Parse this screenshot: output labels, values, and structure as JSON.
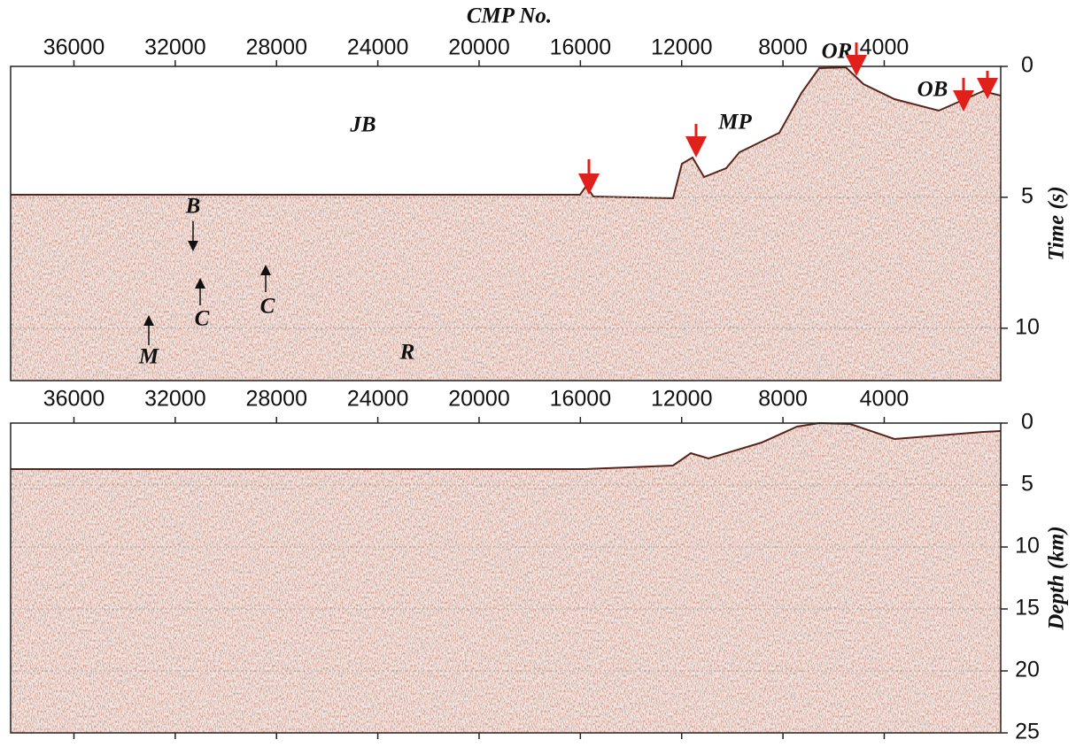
{
  "chart_data": [
    {
      "type": "seismic",
      "title": "CMP No.",
      "y_label": "Time (s)",
      "xlim": [
        38500,
        -600
      ],
      "xticks": [
        36000,
        32000,
        28000,
        24000,
        20000,
        16000,
        12000,
        8000,
        4000
      ],
      "ylim": [
        0,
        12
      ],
      "yticks": [
        0,
        5,
        10
      ],
      "grid": true,
      "annotations": [
        "JB",
        "MP",
        "OR",
        "OB",
        "B",
        "C",
        "C",
        "M",
        "R"
      ]
    },
    {
      "type": "seismic",
      "y_label": "Depth (km)",
      "xlim": [
        38500,
        -600
      ],
      "xticks": [
        36000,
        32000,
        28000,
        24000,
        20000,
        16000,
        12000,
        8000,
        4000
      ],
      "ylim": [
        0,
        25
      ],
      "yticks": [
        0,
        5,
        10,
        15,
        20,
        25
      ],
      "grid": true
    }
  ]
}
